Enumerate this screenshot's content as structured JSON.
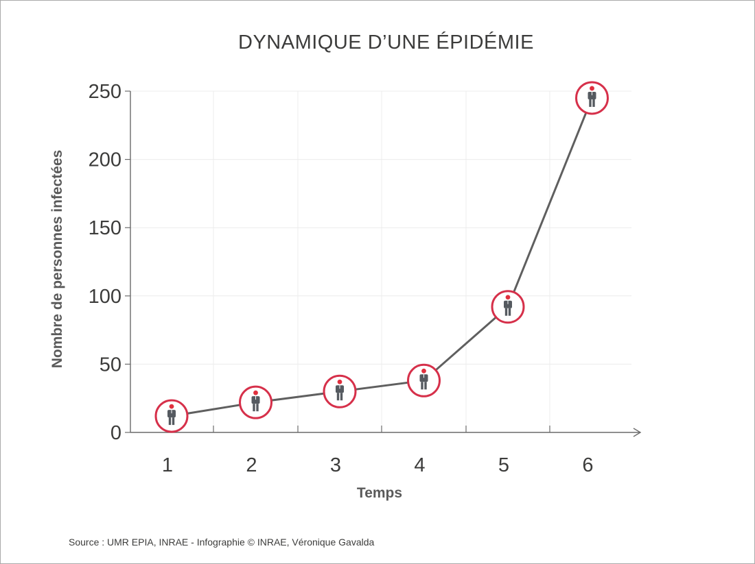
{
  "chart_data": {
    "type": "line",
    "title": "DYNAMIQUE D’UNE ÉPIDÉMIE",
    "xlabel": "Temps",
    "ylabel": "Nombre de personnes infectées",
    "x": [
      1,
      2,
      3,
      4,
      5,
      6
    ],
    "y": [
      12,
      22,
      30,
      38,
      92,
      245
    ],
    "xticks": [
      "1",
      "2",
      "3",
      "4",
      "5",
      "6"
    ],
    "yticks": [
      0,
      50,
      100,
      150,
      200,
      250
    ],
    "ylim": [
      0,
      250
    ],
    "grid": true,
    "line_color": "#5f5f5f",
    "marker_ring_color": "#d6304a",
    "marker_icon": "person-icon",
    "marker_icon_color": "#555a60",
    "marker_head_color": "#e0303e"
  },
  "source": "Source : UMR EPIA, INRAE - Infographie © INRAE, Véronique Gavalda"
}
